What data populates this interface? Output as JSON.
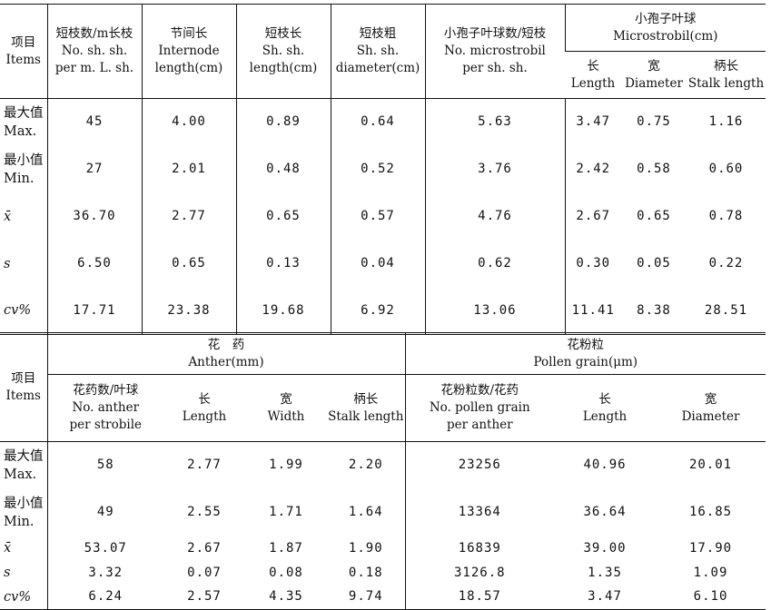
{
  "table1": {
    "headers": {
      "items": [
        "项目",
        "Items"
      ],
      "short_branch_count": [
        "短枝数/m长枝",
        "No. sh. sh.",
        "per m. L. sh."
      ],
      "internode_length": [
        "节间长",
        "Internode",
        "length(cm)"
      ],
      "short_branch_length": [
        "短枝长",
        "Sh. sh.",
        "length(cm)"
      ],
      "short_branch_diameter": [
        "短枝粗",
        "Sh. sh.",
        "diameter(cm)"
      ],
      "microstrobil_count": [
        "小孢子叶球数/短枝",
        "No. microstrobil",
        "per sh. sh."
      ],
      "microstrobil_group": [
        "小孢子叶球",
        "Microstrobil(cm)"
      ],
      "length": [
        "长",
        "Length"
      ],
      "diameter": [
        "宽",
        "Diameter"
      ],
      "stalk_length": [
        "柄长",
        "Stalk length"
      ]
    },
    "rows": [
      {
        "label": [
          "最大值",
          "Max."
        ],
        "italic": false,
        "values": [
          "45",
          "4.00",
          "0.89",
          "0.64",
          "5.63",
          "3.47",
          "0.75",
          "1.16"
        ]
      },
      {
        "label": [
          "最小值",
          "Min."
        ],
        "italic": false,
        "values": [
          "27",
          "2.01",
          "0.48",
          "0.52",
          "3.76",
          "2.42",
          "0.58",
          "0.60"
        ]
      },
      {
        "label": [
          "x̄"
        ],
        "italic": true,
        "values": [
          "36.70",
          "2.77",
          "0.65",
          "0.57",
          "4.76",
          "2.67",
          "0.65",
          "0.78"
        ]
      },
      {
        "label": [
          "s"
        ],
        "italic": true,
        "values": [
          "6.50",
          "0.65",
          "0.13",
          "0.04",
          "0.62",
          "0.30",
          "0.05",
          "0.22"
        ]
      },
      {
        "label": [
          "cv%"
        ],
        "italic": true,
        "values": [
          "17.71",
          "23.38",
          "19.68",
          "6.92",
          "13.06",
          "11.41",
          "8.38",
          "28.51"
        ]
      }
    ]
  },
  "table2": {
    "headers": {
      "items": [
        "项目",
        "Items"
      ],
      "anther_group": [
        "花　药",
        "Anther(mm)"
      ],
      "pollen_group": [
        "花粉粒",
        "Pollen grain(μm)"
      ],
      "anther_count": [
        "花药数/叶球",
        "No. anther",
        "per strobile"
      ],
      "anther_length": [
        "长",
        "Length"
      ],
      "anther_width": [
        "宽",
        "Width"
      ],
      "anther_stalk": [
        "柄长",
        "Stalk length"
      ],
      "pollen_count": [
        "花粉粒数/花药",
        "No. pollen grain",
        "per anther"
      ],
      "pollen_length": [
        "长",
        "Length"
      ],
      "pollen_diameter": [
        "宽",
        "Diameter"
      ]
    },
    "rows": [
      {
        "label": [
          "最大值",
          "Max."
        ],
        "italic": false,
        "values": [
          "58",
          "2.77",
          "1.99",
          "2.20",
          "23256",
          "40.96",
          "20.01"
        ]
      },
      {
        "label": [
          "最小值",
          "Min."
        ],
        "italic": false,
        "values": [
          "49",
          "2.55",
          "1.71",
          "1.64",
          "13364",
          "36.64",
          "16.85"
        ]
      },
      {
        "label": [
          "x̄"
        ],
        "italic": true,
        "values": [
          "53.07",
          "2.67",
          "1.87",
          "1.90",
          "16839",
          "39.00",
          "17.90"
        ]
      },
      {
        "label": [
          "s"
        ],
        "italic": true,
        "values": [
          "3.32",
          "0.07",
          "0.08",
          "0.18",
          "3126.8",
          "1.35",
          "1.09"
        ]
      },
      {
        "label": [
          "cv%"
        ],
        "italic": true,
        "values": [
          "6.24",
          "2.57",
          "4.35",
          "9.74",
          "18.57",
          "3.47",
          "6.10"
        ]
      }
    ]
  }
}
